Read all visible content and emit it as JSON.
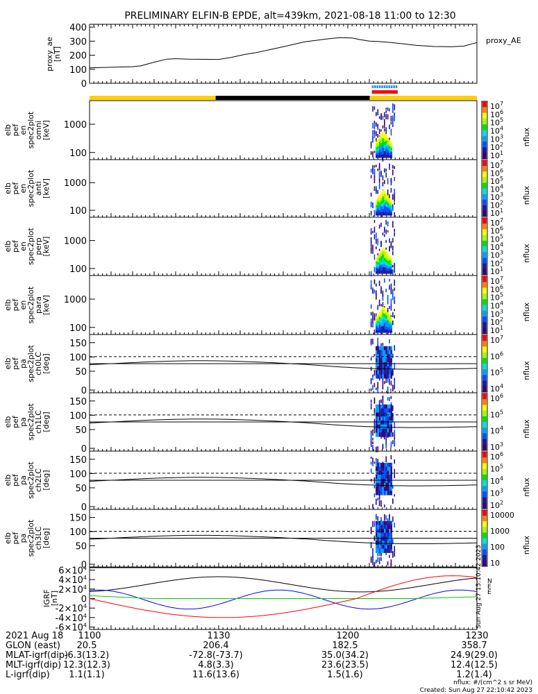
{
  "title": "PRELIMINARY ELFIN-B EPDE, alt=439km, 2021-08-18 11:00 to 12:30",
  "chart_data": {
    "type": "multi-panel",
    "time_range": [
      "2021-08-18 11:00",
      "2021-08-18 12:30"
    ],
    "panels": [
      {
        "id": "proxy_ae",
        "type": "line",
        "ylabel_lines": [
          "proxy_ae",
          "[nT]"
        ],
        "legend": "proxy_AE",
        "yticks": [
          "400",
          "300",
          "200",
          "100",
          "0"
        ],
        "ylim": [
          0,
          420
        ],
        "x_minutes": [
          0,
          3,
          6,
          10,
          12,
          15,
          18,
          20,
          23,
          30,
          33,
          36,
          39,
          42,
          45,
          50,
          55,
          58,
          61,
          63,
          65,
          67,
          70,
          73,
          76,
          80,
          84,
          87,
          90
        ],
        "values": [
          110,
          112,
          115,
          118,
          125,
          150,
          172,
          175,
          172,
          170,
          185,
          205,
          220,
          240,
          260,
          295,
          315,
          325,
          322,
          310,
          300,
          298,
          290,
          280,
          270,
          262,
          260,
          265,
          290
        ]
      },
      {
        "id": "science_zones",
        "type": "bar",
        "label": "",
        "segments": [
          {
            "start_min": 0,
            "end_min": 29.3,
            "color": "#ffd000"
          },
          {
            "start_min": 29.3,
            "end_min": 65.1,
            "color": "#000000"
          },
          {
            "start_min": 65.1,
            "end_min": 90,
            "color": "#ffd000"
          }
        ],
        "collection_marks": {
          "start_min": 65.6,
          "end_min": 71.6,
          "top_color": "#1e90ff",
          "bottom_color": "#ff0000"
        }
      },
      {
        "id": "en_omni",
        "type": "heatmap",
        "ylabel_lines": [
          "elb",
          "pef",
          "en",
          "spec2plot",
          "omni",
          "[keV]"
        ],
        "yticks": [
          "1000",
          "100"
        ],
        "colorbar": {
          "label": "nflux",
          "ticks": [
            "10^7",
            "10^6",
            "10^5",
            "10^4",
            "10^3",
            "10^2",
            "10^1"
          ]
        }
      },
      {
        "id": "en_anti",
        "type": "heatmap",
        "ylabel_lines": [
          "elb",
          "pef",
          "en",
          "spec2plot",
          "anti",
          "[keV]"
        ],
        "yticks": [
          "1000",
          "100"
        ],
        "colorbar": {
          "label": "nflux",
          "ticks": [
            "10^7",
            "10^6",
            "10^5",
            "10^4",
            "10^3",
            "10^2",
            "10^1"
          ]
        }
      },
      {
        "id": "en_perp",
        "type": "heatmap",
        "ylabel_lines": [
          "elb",
          "pef",
          "en",
          "spec2plot",
          "perp",
          "[keV]"
        ],
        "yticks": [
          "1000",
          "100"
        ],
        "colorbar": {
          "label": "nflux",
          "ticks": [
            "10^7",
            "10^6",
            "10^5",
            "10^4",
            "10^3",
            "10^2",
            "10^1"
          ]
        }
      },
      {
        "id": "en_para",
        "type": "heatmap",
        "ylabel_lines": [
          "elb",
          "pef",
          "en",
          "spec2plot",
          "para",
          "[keV]"
        ],
        "yticks": [
          "1000",
          "100"
        ],
        "colorbar": {
          "label": "nflux",
          "ticks": [
            "10^7",
            "10^6",
            "10^5",
            "10^4",
            "10^3",
            "10^2",
            "10^1"
          ]
        }
      },
      {
        "id": "pa_ch0",
        "type": "heatmap",
        "ylabel_lines": [
          "elb",
          "pef",
          "pa",
          "spec2plot",
          "ch0LC",
          "[deg]"
        ],
        "yticks": [
          "150",
          "100",
          "50",
          "0"
        ],
        "colorbar": {
          "label": "nflux",
          "ticks": [
            "10^7",
            "10^6",
            "10^5",
            "10^4"
          ]
        }
      },
      {
        "id": "pa_ch1",
        "type": "heatmap",
        "ylabel_lines": [
          "elb",
          "pef",
          "pa",
          "spec2plot",
          "ch1LC",
          "[deg]"
        ],
        "yticks": [
          "150",
          "100",
          "50",
          "0"
        ],
        "colorbar": {
          "label": "nflux",
          "ticks": [
            "10^6",
            "10^5",
            "10^4",
            "10^3"
          ]
        }
      },
      {
        "id": "pa_ch2",
        "type": "heatmap",
        "ylabel_lines": [
          "elb",
          "pef",
          "pa",
          "spec2plot",
          "ch2LC",
          "[deg]"
        ],
        "yticks": [
          "150",
          "100",
          "50",
          "0"
        ],
        "colorbar": {
          "label": "nflux",
          "ticks": [
            "10^6",
            "10^5",
            "10^4",
            "10^3",
            "10^2"
          ]
        }
      },
      {
        "id": "pa_ch3",
        "type": "heatmap",
        "ylabel_lines": [
          "elb",
          "pef",
          "pa",
          "spec2plot",
          "ch3LC",
          "[deg]"
        ],
        "yticks": [
          "150",
          "100",
          "50",
          "0"
        ],
        "colorbar": {
          "label": "nflux",
          "ticks": [
            "10000",
            "1000",
            "100",
            "10"
          ]
        }
      },
      {
        "id": "igrf",
        "type": "line",
        "ylabel_lines": [
          "IGRF",
          "[nT]"
        ],
        "yticks": [
          "6×10^4",
          "4×10^4",
          "2×10^4",
          "0",
          "-2×10^4",
          "-4×10^4",
          "-6×10^4"
        ],
        "ylim": [
          -65000,
          65000
        ],
        "side_labels": [
          "N",
          "E",
          "E"
        ]
      }
    ],
    "xticks": [
      "1100",
      "1130",
      "1200",
      "1230"
    ]
  },
  "footer": {
    "date_row": {
      "label": "2021 Aug 18",
      "values": [
        "1100",
        "1130",
        "1200",
        "1230"
      ]
    },
    "rows": [
      {
        "label": "GLON (east)",
        "values": [
          "20.5",
          "206.4",
          "182.5",
          "358.7"
        ]
      },
      {
        "label": "MLAT-igrf(dip)",
        "values": [
          "-6.3(13.2)",
          "-72.8(-73.7)",
          "35.0(34.2)",
          "24.9(29.0)"
        ]
      },
      {
        "label": "MLT-igrf(dip)",
        "values": [
          "12.3(12.3)",
          "4.8(3.3)",
          "23.6(23.5)",
          "12.4(12.5)"
        ]
      },
      {
        "label": "L-igrf(dip)",
        "values": [
          "1.1(1.1)",
          "11.6(13.6)",
          "1.5(1.6)",
          "1.2(1.4)"
        ]
      }
    ],
    "units_note": "nflux: #/(cm^2 s sr MeV)",
    "created": "Created: Sun Aug 27 22:10:42 2023",
    "side_stamp": "Sun Aug 27 15:10:42 2023"
  },
  "colors": {
    "black": "#000000",
    "zone_yellow": "#ffd000",
    "blue": "#0000ff",
    "red": "#ff0000",
    "green": "#00c800"
  }
}
